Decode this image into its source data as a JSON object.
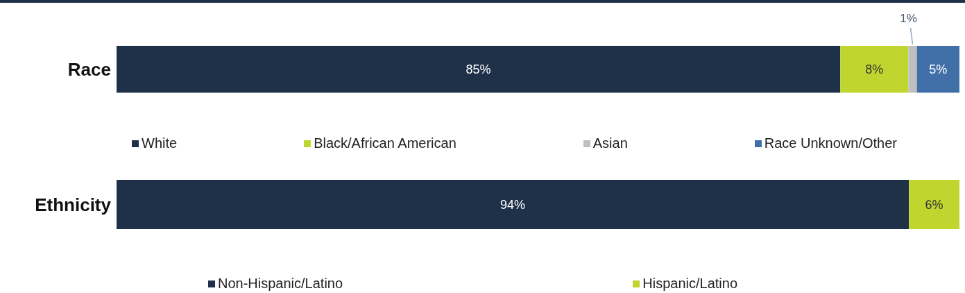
{
  "chart_data": [
    {
      "type": "bar",
      "orientation": "horizontal",
      "stacked": true,
      "categories": [
        "Race"
      ],
      "legend": "bottom",
      "series": [
        {
          "name": "White",
          "color": "#1f3049",
          "values": [
            85
          ],
          "value_labels": [
            "85%"
          ]
        },
        {
          "name": "Black/African American",
          "color": "#c0d62e",
          "values": [
            8
          ],
          "value_labels": [
            "8%"
          ]
        },
        {
          "name": "Asian",
          "color": "#bfbfbf",
          "values": [
            1
          ],
          "value_labels": [
            "1%"
          ]
        },
        {
          "name": "Race Unknown/Other",
          "color": "#4170a8",
          "values": [
            5
          ],
          "value_labels": [
            "5%"
          ]
        }
      ]
    },
    {
      "type": "bar",
      "orientation": "horizontal",
      "stacked": true,
      "categories": [
        "Ethnicity"
      ],
      "legend": "bottom",
      "series": [
        {
          "name": "Non-Hispanic/Latino",
          "color": "#1f3049",
          "values": [
            94
          ],
          "value_labels": [
            "94%"
          ]
        },
        {
          "name": "Hispanic/Latino",
          "color": "#c0d62e",
          "values": [
            6
          ],
          "value_labels": [
            "6%"
          ]
        }
      ]
    }
  ]
}
